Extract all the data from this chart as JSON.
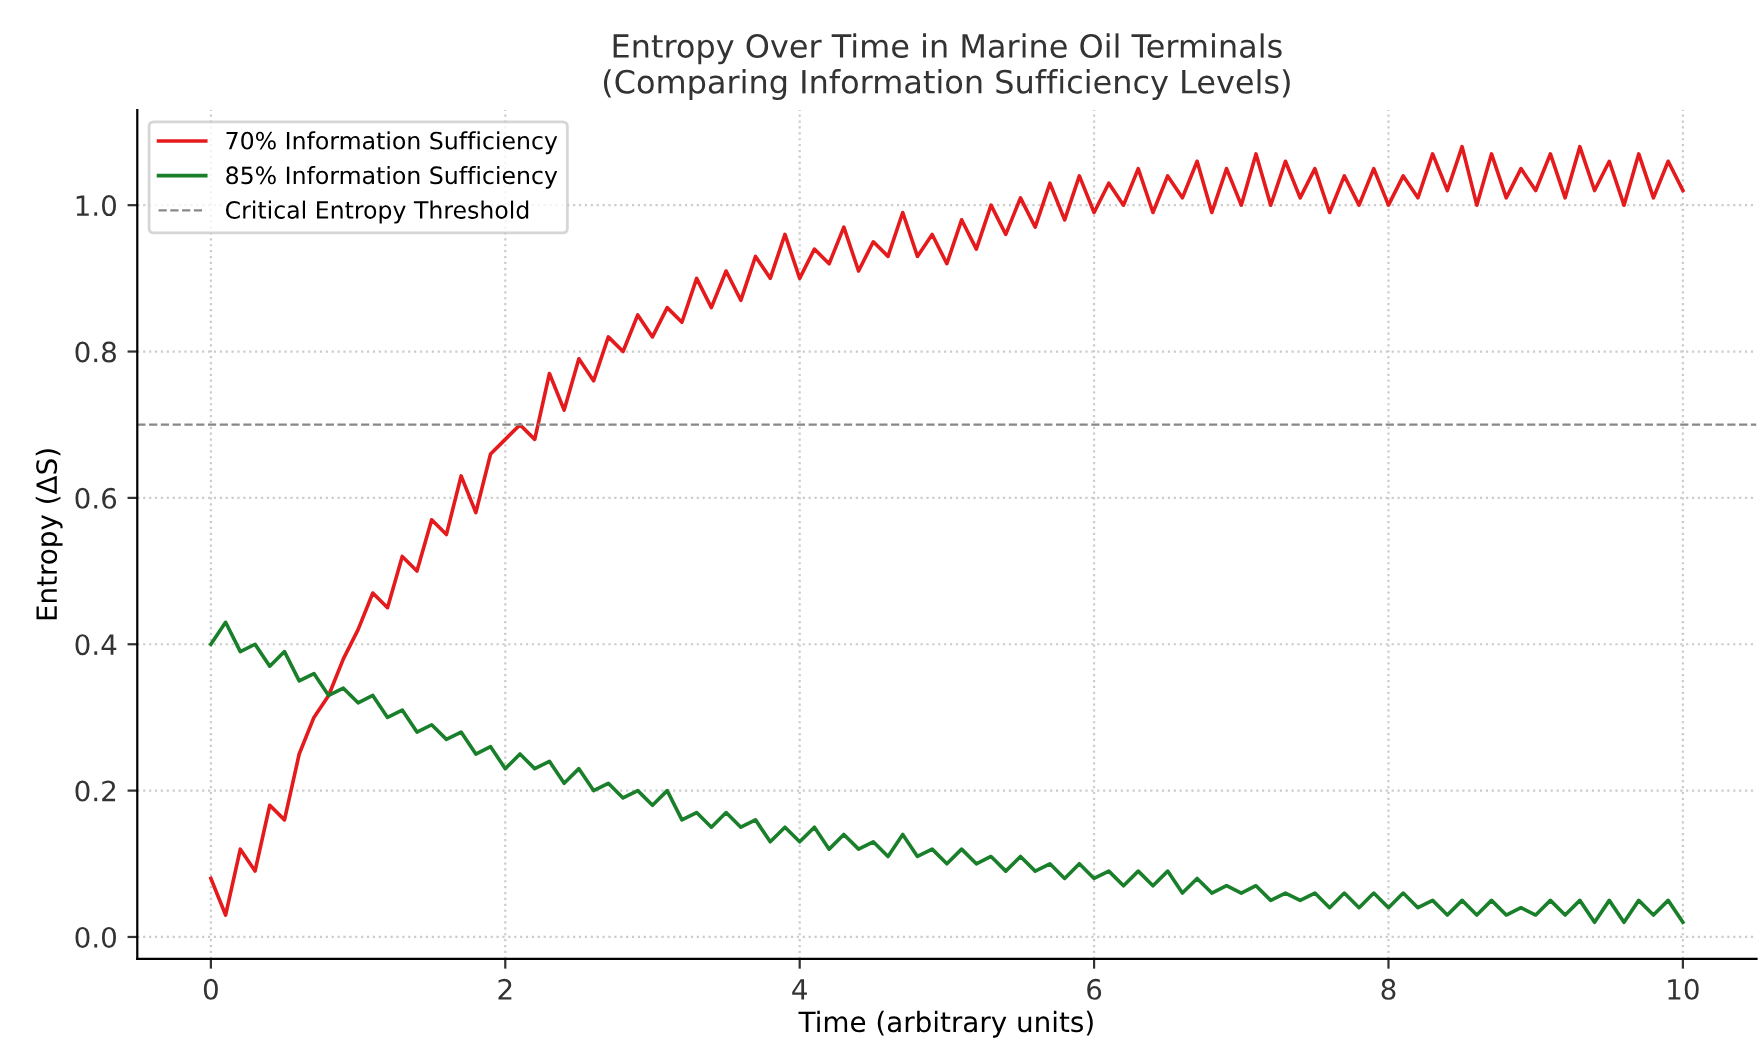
{
  "chart_data": {
    "type": "line",
    "title": "Entropy Over Time in Marine Oil Terminals\n(Comparing Information Sufficiency Levels)",
    "xlabel": "Time (arbitrary units)",
    "ylabel": "Entropy (ΔS)",
    "x": [
      0,
      0.1,
      0.2,
      0.3,
      0.4,
      0.5,
      0.6,
      0.7,
      0.8,
      0.9,
      1,
      1.1,
      1.2,
      1.3,
      1.4,
      1.5,
      1.6,
      1.7,
      1.8,
      1.9,
      2,
      2.1,
      2.2,
      2.3,
      2.4,
      2.5,
      2.6,
      2.7,
      2.8,
      2.9,
      3,
      3.1,
      3.2,
      3.3,
      3.4,
      3.5,
      3.6,
      3.7,
      3.8,
      3.9,
      4,
      4.1,
      4.2,
      4.3,
      4.4,
      4.5,
      4.6,
      4.7,
      4.8,
      4.9,
      5,
      5.1,
      5.2,
      5.3,
      5.4,
      5.5,
      5.6,
      5.7,
      5.8,
      5.9,
      6,
      6.1,
      6.2,
      6.3,
      6.4,
      6.5,
      6.6,
      6.7,
      6.8,
      6.9,
      7,
      7.1,
      7.2,
      7.3,
      7.4,
      7.5,
      7.6,
      7.7,
      7.8,
      7.9,
      8,
      8.1,
      8.2,
      8.3,
      8.4,
      8.5,
      8.6,
      8.7,
      8.8,
      8.9,
      9,
      9.1,
      9.2,
      9.3,
      9.4,
      9.5,
      9.6,
      9.7,
      9.8,
      9.9,
      10
    ],
    "series": [
      {
        "name": "70% Information Sufficiency",
        "color": "#e41a1c",
        "values": [
          0.08,
          0.03,
          0.12,
          0.09,
          0.18,
          0.16,
          0.25,
          0.3,
          0.33,
          0.38,
          0.42,
          0.47,
          0.45,
          0.52,
          0.5,
          0.57,
          0.55,
          0.63,
          0.58,
          0.66,
          0.68,
          0.7,
          0.68,
          0.77,
          0.72,
          0.79,
          0.76,
          0.82,
          0.8,
          0.85,
          0.82,
          0.86,
          0.84,
          0.9,
          0.86,
          0.91,
          0.87,
          0.93,
          0.9,
          0.96,
          0.9,
          0.94,
          0.92,
          0.97,
          0.91,
          0.95,
          0.93,
          0.99,
          0.93,
          0.96,
          0.92,
          0.98,
          0.94,
          1.0,
          0.96,
          1.01,
          0.97,
          1.03,
          0.98,
          1.04,
          0.99,
          1.03,
          1.0,
          1.05,
          0.99,
          1.04,
          1.01,
          1.06,
          0.99,
          1.05,
          1.0,
          1.07,
          1.0,
          1.06,
          1.01,
          1.05,
          0.99,
          1.04,
          1.0,
          1.05,
          1.0,
          1.04,
          1.01,
          1.07,
          1.02,
          1.08,
          1.0,
          1.07,
          1.01,
          1.05,
          1.02,
          1.07,
          1.01,
          1.08,
          1.02,
          1.06,
          1.0,
          1.07,
          1.01,
          1.06,
          1.02
        ]
      },
      {
        "name": "85% Information Sufficiency",
        "color": "#1a7f2a",
        "values": [
          0.4,
          0.43,
          0.39,
          0.4,
          0.37,
          0.39,
          0.35,
          0.36,
          0.33,
          0.34,
          0.32,
          0.33,
          0.3,
          0.31,
          0.28,
          0.29,
          0.27,
          0.28,
          0.25,
          0.26,
          0.23,
          0.25,
          0.23,
          0.24,
          0.21,
          0.23,
          0.2,
          0.21,
          0.19,
          0.2,
          0.18,
          0.2,
          0.16,
          0.17,
          0.15,
          0.17,
          0.15,
          0.16,
          0.13,
          0.15,
          0.13,
          0.15,
          0.12,
          0.14,
          0.12,
          0.13,
          0.11,
          0.14,
          0.11,
          0.12,
          0.1,
          0.12,
          0.1,
          0.11,
          0.09,
          0.11,
          0.09,
          0.1,
          0.08,
          0.1,
          0.08,
          0.09,
          0.07,
          0.09,
          0.07,
          0.09,
          0.06,
          0.08,
          0.06,
          0.07,
          0.06,
          0.07,
          0.05,
          0.06,
          0.05,
          0.06,
          0.04,
          0.06,
          0.04,
          0.06,
          0.04,
          0.06,
          0.04,
          0.05,
          0.03,
          0.05,
          0.03,
          0.05,
          0.03,
          0.04,
          0.03,
          0.05,
          0.03,
          0.05,
          0.02,
          0.05,
          0.02,
          0.05,
          0.03,
          0.05,
          0.02
        ]
      }
    ],
    "ref_lines": [
      {
        "axis": "y",
        "value": 0.7,
        "label": "Critical Entropy Threshold",
        "color": "#888888",
        "line_style": "dashed"
      }
    ],
    "xlim": [
      -0.5,
      10.5
    ],
    "ylim": [
      -0.03,
      1.13
    ],
    "xticks": [
      0,
      2,
      4,
      6,
      8,
      10
    ],
    "yticks": [
      {
        "value": 0,
        "label": "0.0"
      },
      {
        "value": 0.2,
        "label": "0.2"
      },
      {
        "value": 0.4,
        "label": "0.4"
      },
      {
        "value": 0.6,
        "label": "0.6"
      },
      {
        "value": 0.8,
        "label": "0.8"
      },
      {
        "value": 1.0,
        "label": "1.0"
      }
    ],
    "grid": true,
    "legend": "top left",
    "marker": "none",
    "line_style": "solid"
  }
}
